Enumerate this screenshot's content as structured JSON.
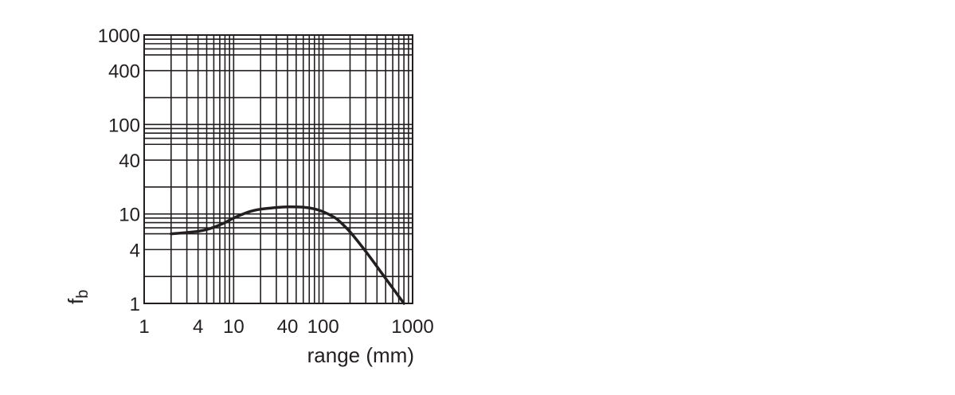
{
  "chart_data": {
    "type": "line",
    "xscale": "log",
    "yscale": "log",
    "xlim": [
      1,
      1000
    ],
    "ylim": [
      1,
      1000
    ],
    "xticks": [
      1,
      4,
      10,
      40,
      100,
      1000
    ],
    "xtick_labels": [
      "1",
      "4",
      "10",
      "40",
      "100",
      "1000"
    ],
    "yticks": [
      1,
      4,
      10,
      40,
      100,
      400,
      1000
    ],
    "ytick_labels": [
      "1",
      "4",
      "10",
      "40",
      "100",
      "400",
      "1000"
    ],
    "x_gridlines": [
      1,
      2,
      3,
      4,
      5,
      6,
      7,
      8,
      9,
      10,
      20,
      30,
      40,
      50,
      60,
      70,
      80,
      90,
      100,
      200,
      300,
      400,
      500,
      600,
      700,
      800,
      900,
      1000
    ],
    "y_gridlines": [
      1,
      2,
      4,
      6,
      7,
      8,
      9,
      10,
      20,
      40,
      60,
      70,
      80,
      90,
      100,
      200,
      400,
      600,
      700,
      800,
      900,
      1000
    ],
    "grid": true,
    "xlabel": "range (mm)",
    "ylabel": "f",
    "ylabel_subscript": "b",
    "series": [
      {
        "x": [
          2,
          3,
          4,
          5,
          6,
          8,
          10,
          15,
          20,
          30,
          40,
          60,
          80,
          100,
          130,
          150,
          200,
          300,
          500,
          800
        ],
        "y": [
          6,
          6.2,
          6.4,
          6.7,
          7.1,
          8,
          9,
          10.6,
          11.3,
          11.8,
          12,
          11.9,
          11.4,
          10.6,
          9.3,
          8.4,
          6.3,
          3.8,
          1.9,
          1
        ]
      }
    ]
  }
}
